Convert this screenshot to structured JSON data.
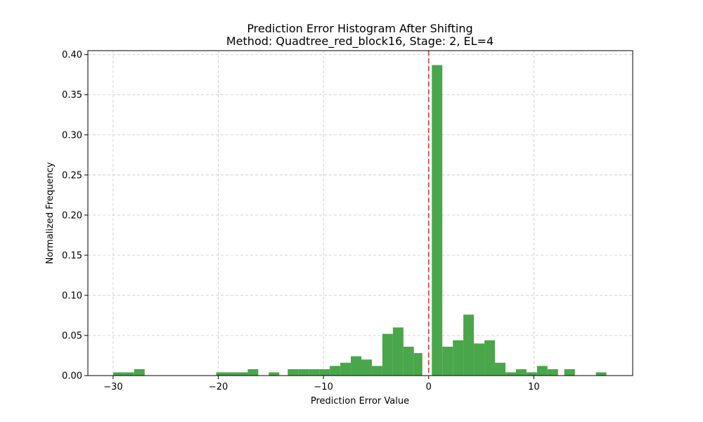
{
  "chart_data": {
    "type": "bar",
    "title_line1": "Prediction Error Histogram After Shifting",
    "title_line2": "Method: Quadtree_red_block16, Stage: 2, EL=4",
    "xlabel": "Prediction Error Value",
    "ylabel": "Normalized Frequency",
    "xlim": [
      -32.4,
      19.4
    ],
    "ylim": [
      0,
      0.405
    ],
    "xticks": [
      -30,
      -20,
      -10,
      0,
      10
    ],
    "xtick_labels": [
      "−30",
      "−20",
      "−10",
      "0",
      "10"
    ],
    "yticks": [
      0.0,
      0.05,
      0.1,
      0.15,
      0.2,
      0.25,
      0.3,
      0.35,
      0.4
    ],
    "ytick_labels": [
      "0.00",
      "0.05",
      "0.10",
      "0.15",
      "0.20",
      "0.25",
      "0.30",
      "0.35",
      "0.40"
    ],
    "grid": true,
    "bar_color": "#4aa64a",
    "reference_line": {
      "x": 0,
      "color": "#e03a3a",
      "style": "dashed"
    },
    "bins": [
      {
        "x0": -30.0,
        "x1": -29.0,
        "value": 0.004
      },
      {
        "x0": -29.0,
        "x1": -28.0,
        "value": 0.004
      },
      {
        "x0": -28.0,
        "x1": -27.0,
        "value": 0.008
      },
      {
        "x0": -20.2,
        "x1": -19.2,
        "value": 0.004
      },
      {
        "x0": -19.2,
        "x1": -18.2,
        "value": 0.004
      },
      {
        "x0": -18.2,
        "x1": -17.2,
        "value": 0.004
      },
      {
        "x0": -17.2,
        "x1": -16.2,
        "value": 0.008
      },
      {
        "x0": -15.2,
        "x1": -14.2,
        "value": 0.004
      },
      {
        "x0": -13.4,
        "x1": -12.4,
        "value": 0.008
      },
      {
        "x0": -12.4,
        "x1": -11.4,
        "value": 0.008
      },
      {
        "x0": -11.4,
        "x1": -10.4,
        "value": 0.008
      },
      {
        "x0": -10.4,
        "x1": -9.4,
        "value": 0.008
      },
      {
        "x0": -9.4,
        "x1": -8.4,
        "value": 0.012
      },
      {
        "x0": -8.4,
        "x1": -7.4,
        "value": 0.016
      },
      {
        "x0": -7.4,
        "x1": -6.4,
        "value": 0.024
      },
      {
        "x0": -6.4,
        "x1": -5.4,
        "value": 0.02
      },
      {
        "x0": -5.4,
        "x1": -4.4,
        "value": 0.012
      },
      {
        "x0": -4.4,
        "x1": -3.4,
        "value": 0.052
      },
      {
        "x0": -3.4,
        "x1": -2.4,
        "value": 0.06
      },
      {
        "x0": -2.4,
        "x1": -1.4,
        "value": 0.036
      },
      {
        "x0": -1.4,
        "x1": -0.6,
        "value": 0.028
      },
      {
        "x0": 0.3,
        "x1": 1.3,
        "value": 0.387
      },
      {
        "x0": 1.3,
        "x1": 2.3,
        "value": 0.036
      },
      {
        "x0": 2.3,
        "x1": 3.3,
        "value": 0.044
      },
      {
        "x0": 3.3,
        "x1": 4.3,
        "value": 0.076
      },
      {
        "x0": 4.3,
        "x1": 5.3,
        "value": 0.04
      },
      {
        "x0": 5.3,
        "x1": 6.3,
        "value": 0.044
      },
      {
        "x0": 6.3,
        "x1": 7.3,
        "value": 0.016
      },
      {
        "x0": 7.3,
        "x1": 8.3,
        "value": 0.004
      },
      {
        "x0": 8.3,
        "x1": 9.3,
        "value": 0.008
      },
      {
        "x0": 9.3,
        "x1": 10.3,
        "value": 0.004
      },
      {
        "x0": 10.3,
        "x1": 11.3,
        "value": 0.012
      },
      {
        "x0": 11.3,
        "x1": 12.3,
        "value": 0.008
      },
      {
        "x0": 12.9,
        "x1": 13.9,
        "value": 0.008
      },
      {
        "x0": 15.9,
        "x1": 16.9,
        "value": 0.004
      }
    ]
  }
}
